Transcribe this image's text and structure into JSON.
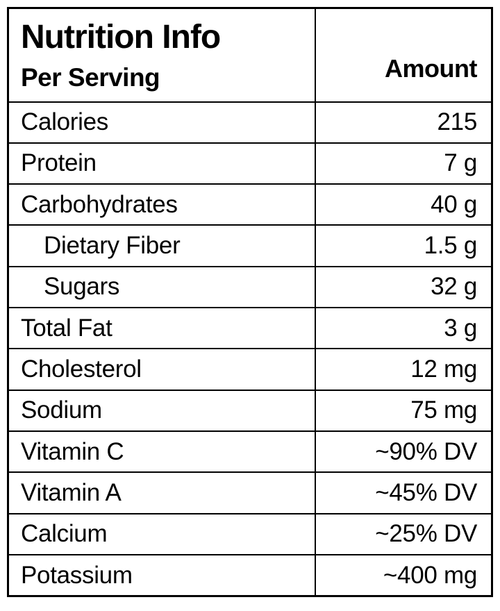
{
  "table": {
    "title": "Nutrition Info",
    "subtitle": "Per Serving",
    "amount_header": "Amount",
    "rows": [
      {
        "label": "Calories",
        "value": "215",
        "indent": false
      },
      {
        "label": "Protein",
        "value": "7 g",
        "indent": false
      },
      {
        "label": "Carbohydrates",
        "value": "40 g",
        "indent": false
      },
      {
        "label": "Dietary Fiber",
        "value": "1.5 g",
        "indent": true
      },
      {
        "label": "Sugars",
        "value": "32 g",
        "indent": true
      },
      {
        "label": "Total Fat",
        "value": "3 g",
        "indent": false
      },
      {
        "label": "Cholesterol",
        "value": "12 mg",
        "indent": false
      },
      {
        "label": "Sodium",
        "value": "75 mg",
        "indent": false
      },
      {
        "label": "Vitamin C",
        "value": "~90% DV",
        "indent": false
      },
      {
        "label": "Vitamin A",
        "value": "~45% DV",
        "indent": false
      },
      {
        "label": "Calcium",
        "value": "~25% DV",
        "indent": false
      },
      {
        "label": "Potassium",
        "value": "~400 mg",
        "indent": false
      }
    ]
  },
  "colors": {
    "text": "#000000",
    "background": "#ffffff",
    "border": "#000000"
  }
}
